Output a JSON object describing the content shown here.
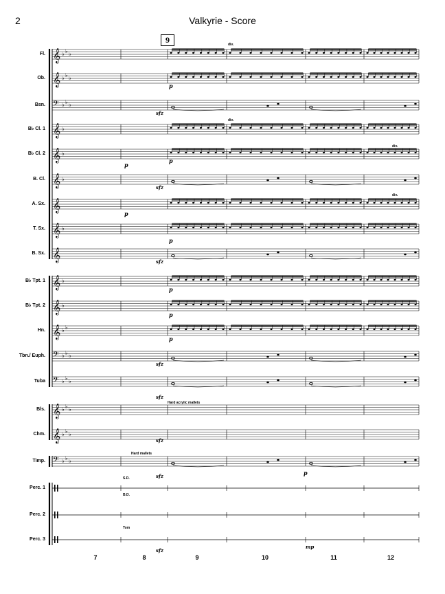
{
  "header": {
    "page_number": "2",
    "title": "Valkyrie - Score"
  },
  "rehearsal_mark": "9",
  "instruments": [
    {
      "id": "fl",
      "label": "Fl.",
      "clef": "treble",
      "key": "Eb",
      "group": 1
    },
    {
      "id": "ob",
      "label": "Ob.",
      "clef": "treble",
      "key": "Eb",
      "group": 1
    },
    {
      "id": "bsn",
      "label": "Bsn.",
      "clef": "bass",
      "key": "Eb",
      "group": 1
    },
    {
      "id": "bcl1",
      "label": "B♭ Cl. 1",
      "clef": "treble",
      "key": "F",
      "group": 1
    },
    {
      "id": "bcl2",
      "label": "B♭ Cl. 2",
      "clef": "treble",
      "key": "F",
      "group": 1
    },
    {
      "id": "bcl",
      "label": "B. Cl.",
      "clef": "treble",
      "key": "F",
      "group": 1
    },
    {
      "id": "asx",
      "label": "A. Sx.",
      "clef": "treble",
      "key": "C",
      "group": 1
    },
    {
      "id": "tsx",
      "label": "T. Sx.",
      "clef": "treble",
      "key": "F",
      "group": 1
    },
    {
      "id": "bsx",
      "label": "B. Sx.",
      "clef": "treble",
      "key": "C",
      "group": 1
    },
    {
      "id": "tpt1",
      "label": "B♭ Tpt. 1",
      "clef": "treble",
      "key": "F",
      "group": 2
    },
    {
      "id": "tpt2",
      "label": "B♭ Tpt. 2",
      "clef": "treble",
      "key": "F",
      "group": 2
    },
    {
      "id": "hn",
      "label": "Hn.",
      "clef": "treble",
      "key": "Bb",
      "group": 2
    },
    {
      "id": "tbn",
      "label": "Tbn./ Euph.",
      "clef": "bass",
      "key": "Eb",
      "group": 2
    },
    {
      "id": "tuba",
      "label": "Tuba",
      "clef": "bass",
      "key": "Eb",
      "group": 2
    },
    {
      "id": "bls",
      "label": "Bls.",
      "clef": "treble",
      "key": "Eb",
      "group": 3
    },
    {
      "id": "chm",
      "label": "Chm.",
      "clef": "treble",
      "key": "Eb",
      "group": 3
    },
    {
      "id": "timp",
      "label": "Timp.",
      "clef": "bass",
      "key": "Eb",
      "group": 4
    },
    {
      "id": "perc1",
      "label": "Perc. 1",
      "clef": "perc",
      "key": "C",
      "group": 5
    },
    {
      "id": "perc2",
      "label": "Perc. 2",
      "clef": "perc",
      "key": "C",
      "group": 5
    },
    {
      "id": "perc3",
      "label": "Perc. 3",
      "clef": "perc",
      "key": "C",
      "group": 5
    }
  ],
  "measures": [
    "7",
    "8",
    "9",
    "10",
    "11",
    "12"
  ],
  "annotations": {
    "div": "div.",
    "dyn_p": "p",
    "dyn_sfz": "sfz",
    "dyn_mp": "mp",
    "hard_acrylic_mallets": "Hard acrylic mallets",
    "hard_mallets": "Hard mallets",
    "sd": "S.D.",
    "bd": "B.D.",
    "tom": "Tom"
  }
}
